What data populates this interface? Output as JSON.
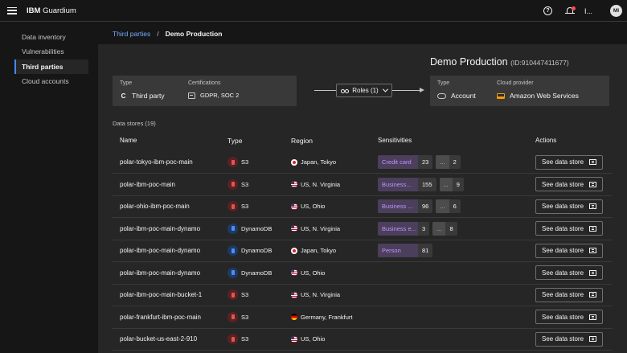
{
  "topbar": {
    "brand_bold": "IBM",
    "brand_name": "Guardium",
    "help_glyph": "?",
    "user_trunc": "I...",
    "avatar_initials": "MI"
  },
  "sidebar": {
    "items": [
      {
        "label": "Data inventory"
      },
      {
        "label": "Vulnerabilities"
      },
      {
        "label": "Third parties"
      },
      {
        "label": "Cloud accounts"
      }
    ]
  },
  "breadcrumb": {
    "parent": "Third parties",
    "separator": "/",
    "current": "Demo Production"
  },
  "header": {
    "title": "Demo Production",
    "id_label": "(ID:910447411677)"
  },
  "party_card": {
    "type_label": "Type",
    "type_icon": "C",
    "type_value": "Third party",
    "cert_label": "Certifications",
    "cert_value": "GDPR, SOC 2"
  },
  "roles_button": {
    "label": "Roles (1)"
  },
  "cloud_card": {
    "type_label": "Type",
    "type_value": "Account",
    "provider_label": "Cloud provider",
    "provider_value": "Amazon Web Services"
  },
  "datastores": {
    "count_label": "Data stores (19)",
    "columns": [
      "Name",
      "Type",
      "Region",
      "Sensitivities",
      "Actions"
    ],
    "action_label": "See data store",
    "rows": [
      {
        "name": "polar-tokyo-ibm-poc-main",
        "type": "S3",
        "type_icon": "s3",
        "region": "Japan, Tokyo",
        "flag": "jp",
        "sens_name": "Credit card",
        "sens_count": "23",
        "more_label": "...",
        "more_count": "2"
      },
      {
        "name": "polar-ibm-poc-main",
        "type": "S3",
        "type_icon": "s3",
        "region": "US, N. Virginia",
        "flag": "us",
        "sens_name": "Business...",
        "sens_count": "155",
        "more_label": "...",
        "more_count": "9"
      },
      {
        "name": "polar-ohio-ibm-poc-main",
        "type": "S3",
        "type_icon": "s3",
        "region": "US, Ohio",
        "flag": "us",
        "sens_name": "Business ...",
        "sens_count": "96",
        "more_label": "...",
        "more_count": "6"
      },
      {
        "name": "polar-ibm-poc-main-dynamo",
        "type": "DynamoDB",
        "type_icon": "dynamo",
        "region": "US, N. Virginia",
        "flag": "us",
        "sens_name": "Business e...",
        "sens_count": "3",
        "more_label": "...",
        "more_count": "8"
      },
      {
        "name": "polar-ibm-poc-main-dynamo",
        "type": "DynamoDB",
        "type_icon": "dynamo",
        "region": "Japan, Tokyo",
        "flag": "jp",
        "sens_name": "Person",
        "sens_count": "81",
        "more_label": "",
        "more_count": ""
      },
      {
        "name": "polar-ibm-poc-main-dynamo",
        "type": "DynamoDB",
        "type_icon": "dynamo",
        "region": "US, Ohio",
        "flag": "us",
        "sens_name": "",
        "sens_count": "",
        "more_label": "",
        "more_count": ""
      },
      {
        "name": "polar-ibm-poc-main-bucket-1",
        "type": "S3",
        "type_icon": "s3",
        "region": "US, N. Virginia",
        "flag": "us",
        "sens_name": "",
        "sens_count": "",
        "more_label": "",
        "more_count": ""
      },
      {
        "name": "polar-frankfurt-ibm-poc-main",
        "type": "S3",
        "type_icon": "s3",
        "region": "Germany, Frankfurt",
        "flag": "de",
        "sens_name": "",
        "sens_count": "",
        "more_label": "",
        "more_count": ""
      },
      {
        "name": "polar-bucket-us-east-2-910",
        "type": "S3",
        "type_icon": "s3",
        "region": "US, Ohio",
        "flag": "us",
        "sens_name": "",
        "sens_count": "",
        "more_label": "",
        "more_count": ""
      }
    ]
  }
}
